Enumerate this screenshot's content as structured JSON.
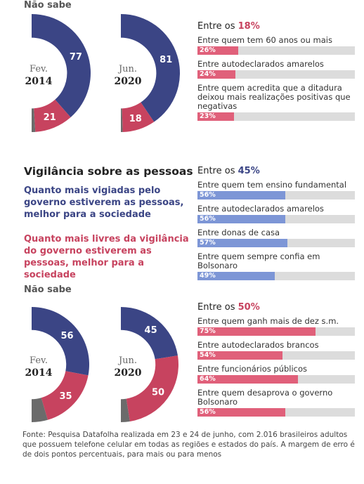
{
  "page": {
    "dont_know_top": "Não sabe",
    "title": "Vigilância sobre as pessoas",
    "statement_watched": "Quanto mais vigiadas pelo governo estiverem as pessoas, melhor para a sociedade",
    "statement_free": "Quanto mais livres da vigilância do governo estiverem as pessoas, melhor para a sociedade",
    "dont_know_bottom": "Não sabe",
    "source": "Fonte: Pesquisa Datafolha realizada em 23 e 24 de junho, com 2.016 brasileiros adultos que possuem telefone celular em todas as regiões e estados do país. A margem de erro é de dois pontos percentuais, para mais ou para menos"
  },
  "chart_data": [
    {
      "type": "pie",
      "period": "Fev.",
      "year": "2014",
      "values": [
        77,
        21,
        2
      ],
      "colors": [
        "#3b4585",
        "#c7435f",
        "#6b6b6b"
      ]
    },
    {
      "type": "pie",
      "period": "Jun.",
      "year": "2020",
      "values": [
        81,
        18,
        1
      ],
      "colors": [
        "#3b4585",
        "#c7435f",
        "#6b6b6b"
      ]
    },
    {
      "type": "bar",
      "title": "Entre os",
      "highlight": "18%",
      "highlight_color": "#c7435f",
      "categories": [
        "Entre quem tem 60 anos ou mais",
        "Entre autodeclarados amarelos",
        "Entre quem acredita que a ditadura deixou mais realizações positivas que negativas"
      ],
      "values": [
        26,
        24,
        23
      ],
      "value_labels": [
        "26%",
        "24%",
        "23%"
      ],
      "color": "#e0607a",
      "xlim": [
        0,
        100
      ]
    },
    {
      "type": "bar",
      "title": "Entre os",
      "highlight": "45%",
      "highlight_color": "#3b4585",
      "categories": [
        "Entre quem tem ensino fundamental",
        "Entre autodeclarados amarelos",
        "Entre donas de casa",
        "Entre quem sempre confia em Bolsonaro"
      ],
      "values": [
        56,
        56,
        57,
        49
      ],
      "value_labels": [
        "56%",
        "56%",
        "57%",
        "49%"
      ],
      "color": "#7d96d6",
      "xlim": [
        0,
        100
      ]
    },
    {
      "type": "pie",
      "period": "Fev.",
      "year": "2014",
      "values": [
        56,
        35,
        9
      ],
      "colors": [
        "#3b4585",
        "#c7435f",
        "#6b6b6b"
      ]
    },
    {
      "type": "pie",
      "period": "Jun.",
      "year": "2020",
      "values": [
        45,
        50,
        5
      ],
      "colors": [
        "#3b4585",
        "#c7435f",
        "#6b6b6b"
      ]
    },
    {
      "type": "bar",
      "title": "Entre os",
      "highlight": "50%",
      "highlight_color": "#c7435f",
      "categories": [
        "Entre quem ganh mais de dez s.m.",
        "Entre autodeclarados brancos",
        "Entre funcionários públicos",
        "Entre quem desaprova o governo Bolsonaro"
      ],
      "values": [
        75,
        54,
        64,
        56
      ],
      "value_labels": [
        "75%",
        "54%",
        "64%",
        "56%"
      ],
      "color": "#e0607a",
      "xlim": [
        0,
        100
      ]
    }
  ]
}
